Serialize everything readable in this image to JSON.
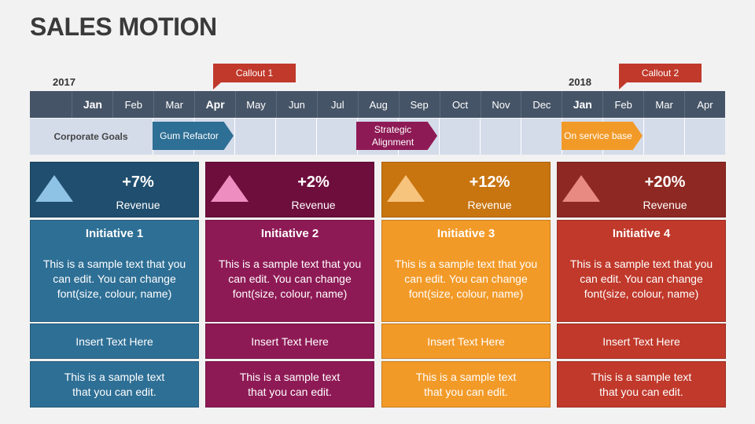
{
  "title": "SALES MOTION",
  "timeline": {
    "year_start": "2017",
    "year_end": "2018",
    "callouts": [
      {
        "label": "Callout 1",
        "color": "#c0392b"
      },
      {
        "label": "Callout 2",
        "color": "#c0392b"
      }
    ],
    "months": [
      "",
      "Jan",
      "Feb",
      "Mar",
      "Apr",
      "May",
      "Jun",
      "Jul",
      "Aug",
      "Sep",
      "Oct",
      "Nov",
      "Dec",
      "Jan",
      "Feb",
      "Mar",
      "Apr"
    ],
    "row_label": "Corporate Goals",
    "goals": [
      {
        "label": "Gum Refactor",
        "color": "#2e6f95"
      },
      {
        "label": "Strategic Alignment",
        "color": "#8e1a55"
      },
      {
        "label": "On service base",
        "color": "#f29a28"
      }
    ]
  },
  "cards": [
    {
      "pct": "+7%",
      "metric": "Revenue",
      "initiative": "Initiative 1",
      "body": "This is a sample text that you can edit. You can change font(size, colour, name)",
      "insert": "Insert Text Here",
      "sample": "This is a sample text that you can edit.",
      "head_color": "#1f4e6e",
      "tri_color": "#8fc3e6",
      "box_color": "#2e6f95"
    },
    {
      "pct": "+2%",
      "metric": "Revenue",
      "initiative": "Initiative 2",
      "body": "This is a sample text that you can edit. You can change font(size, colour, name)",
      "insert": "Insert Text Here",
      "sample": "This is a sample text that you can edit.",
      "head_color": "#6e0e3d",
      "tri_color": "#ee8ec0",
      "box_color": "#8e1a55"
    },
    {
      "pct": "+12%",
      "metric": "Revenue",
      "initiative": "Initiative 3",
      "body": "This is a sample text that you can edit. You can change font(size, colour, name)",
      "insert": "Insert Text Here",
      "sample": "This is a sample text that you can edit.",
      "head_color": "#c87510",
      "tri_color": "#f7c47e",
      "box_color": "#f29a28"
    },
    {
      "pct": "+20%",
      "metric": "Revenue",
      "initiative": "Initiative 4",
      "body": "This is a sample text that you can edit. You can change font(size, colour, name)",
      "insert": "Insert Text Here",
      "sample": "This is a sample text that you can edit.",
      "head_color": "#8e2822",
      "tri_color": "#e88a82",
      "box_color": "#c0392b"
    }
  ]
}
